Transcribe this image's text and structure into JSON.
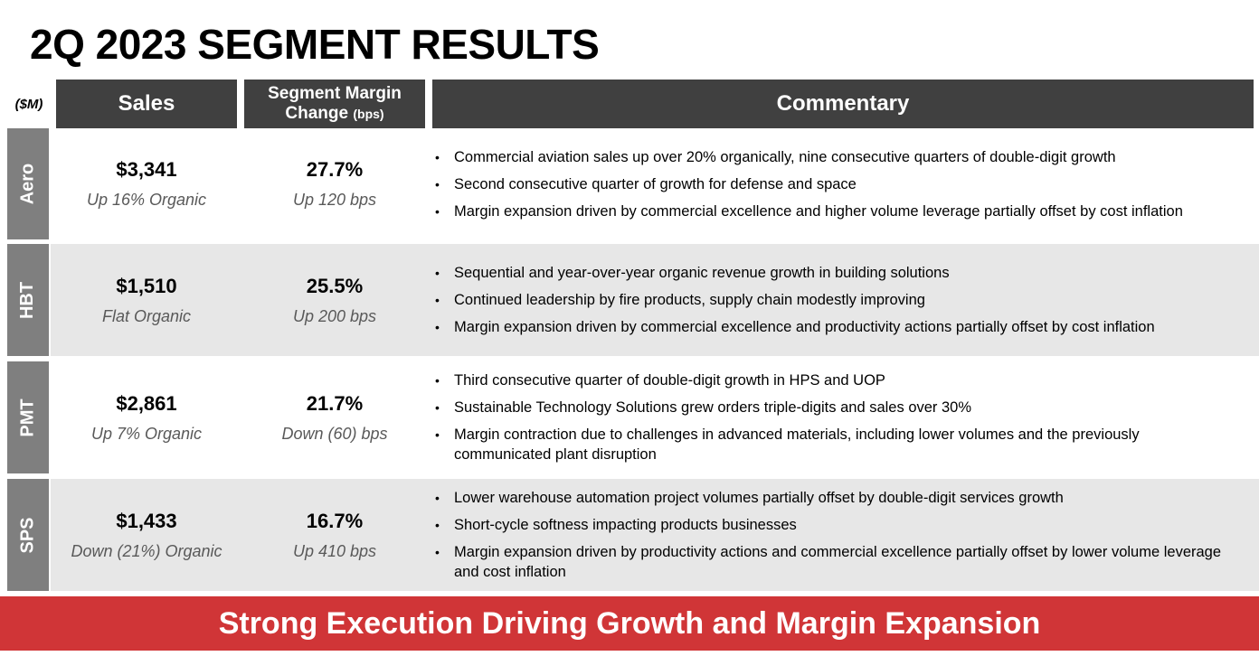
{
  "title": "2Q 2023 SEGMENT RESULTS",
  "unit_label": "($M)",
  "headers": {
    "sales": "Sales",
    "margin_line1": "Segment Margin",
    "margin_line2": "Change",
    "margin_suffix": "(bps)",
    "commentary": "Commentary"
  },
  "segments": [
    {
      "name": "Aero",
      "sales_value": "$3,341",
      "sales_note": "Up 16% Organic",
      "margin_value": "27.7%",
      "margin_note": "Up 120 bps",
      "commentary": [
        "Commercial aviation sales up over 20% organically, nine consecutive quarters of double-digit growth",
        "Second consecutive quarter of growth for defense and space",
        "Margin expansion driven by commercial excellence and higher volume leverage partially offset by cost inflation"
      ]
    },
    {
      "name": "HBT",
      "sales_value": "$1,510",
      "sales_note": "Flat Organic",
      "margin_value": "25.5%",
      "margin_note": "Up 200 bps",
      "commentary": [
        "Sequential and year-over-year organic revenue growth in building solutions",
        "Continued leadership by fire products, supply chain modestly improving",
        "Margin expansion driven by commercial excellence and productivity actions partially offset by cost inflation"
      ]
    },
    {
      "name": "PMT",
      "sales_value": "$2,861",
      "sales_note": "Up 7% Organic",
      "margin_value": "21.7%",
      "margin_note": "Down (60) bps",
      "commentary": [
        "Third consecutive quarter of double-digit growth in HPS and UOP",
        "Sustainable Technology Solutions grew orders triple-digits and sales over 30%",
        "Margin contraction due to challenges in advanced materials, including lower volumes and the previously communicated plant disruption"
      ]
    },
    {
      "name": "SPS",
      "sales_value": "$1,433",
      "sales_note": "Down (21%) Organic",
      "margin_value": "16.7%",
      "margin_note": "Up 410 bps",
      "commentary": [
        "Lower warehouse automation project volumes partially offset by double-digit services growth",
        "Short-cycle softness impacting products businesses",
        "Margin expansion driven by productivity actions and commercial excellence partially offset by lower volume leverage and cost inflation"
      ]
    }
  ],
  "banner": "Strong Execution Driving Growth and Margin Expansion",
  "colors": {
    "header_bg": "#404040",
    "segment_label_bg": "#7f7f7f",
    "row_shade": "#e7e7e7",
    "banner_bg": "#d03537"
  }
}
